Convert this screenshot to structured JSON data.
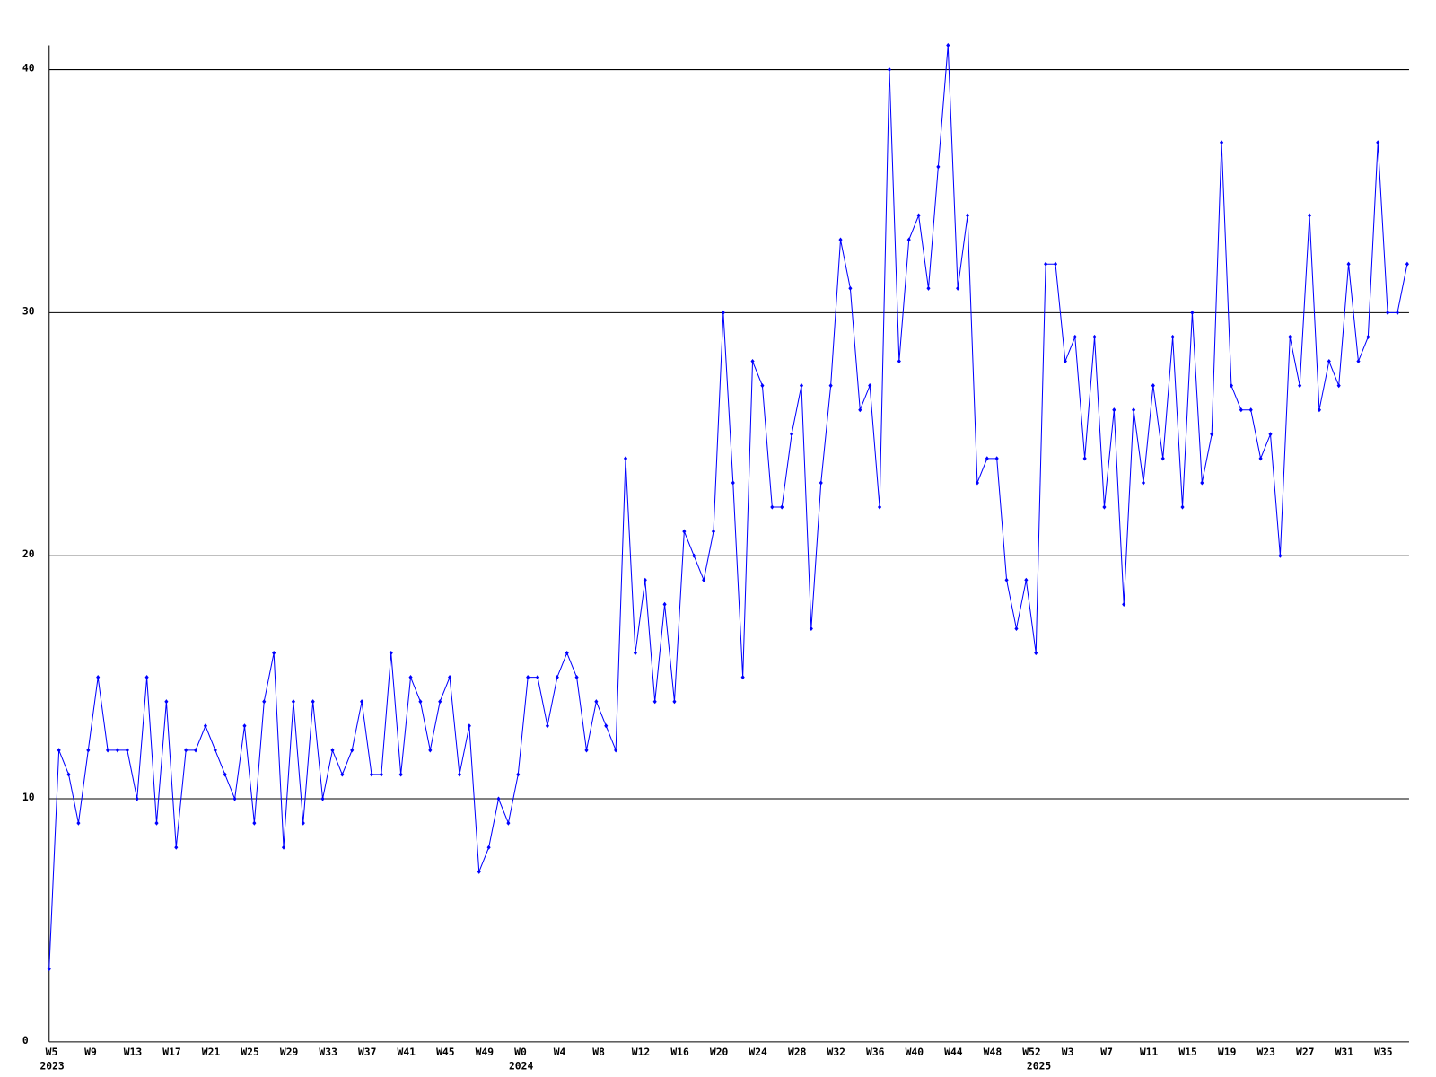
{
  "chart_data": {
    "type": "line",
    "color": "#0000ff",
    "grid": true,
    "ylim": [
      0,
      41
    ],
    "yticks": [
      0,
      10,
      20,
      30,
      40
    ],
    "categories": [
      "W5",
      null,
      null,
      null,
      "W9",
      null,
      null,
      null,
      "W13",
      null,
      null,
      null,
      "W17",
      null,
      null,
      null,
      "W21",
      null,
      null,
      null,
      "W25",
      null,
      null,
      null,
      "W29",
      null,
      null,
      null,
      "W33",
      null,
      null,
      null,
      "W37",
      null,
      null,
      null,
      "W41",
      null,
      null,
      null,
      "W45",
      null,
      null,
      null,
      "W49",
      null,
      null,
      null,
      "W0",
      null,
      null,
      null,
      "W4",
      null,
      null,
      null,
      "W8",
      null,
      null,
      null,
      "W12",
      null,
      null,
      null,
      "W16",
      null,
      null,
      null,
      "W20",
      null,
      null,
      null,
      "W24",
      null,
      null,
      null,
      "W28",
      null,
      null,
      null,
      "W32",
      null,
      null,
      null,
      "W36",
      null,
      null,
      null,
      "W40",
      null,
      null,
      null,
      "W44",
      null,
      null,
      null,
      "W48",
      null,
      null,
      null,
      "W52",
      null,
      null,
      null,
      "W3",
      null,
      null,
      null,
      "W7",
      null,
      null,
      null,
      "W11",
      null,
      null,
      null,
      "W15",
      null,
      null,
      null,
      "W19",
      null,
      null,
      null,
      "W23",
      null,
      null,
      null,
      "W27",
      null,
      null,
      null,
      "W31",
      null,
      null,
      null,
      "W35",
      null,
      null,
      null
    ],
    "x_sublabels": [
      "2023",
      null,
      null,
      null,
      null,
      null,
      null,
      null,
      null,
      null,
      null,
      null,
      null,
      null,
      null,
      null,
      null,
      null,
      null,
      null,
      null,
      null,
      null,
      null,
      null,
      null,
      null,
      null,
      null,
      null,
      null,
      null,
      null,
      null,
      null,
      null,
      null,
      null,
      null,
      null,
      null,
      null,
      null,
      null,
      null,
      null,
      null,
      null,
      "2024",
      null,
      null,
      null,
      null,
      null,
      null,
      null,
      null,
      null,
      null,
      null,
      null,
      null,
      null,
      null,
      null,
      null,
      null,
      null,
      null,
      null,
      null,
      null,
      null,
      null,
      null,
      null,
      null,
      null,
      null,
      null,
      null,
      null,
      null,
      null,
      null,
      null,
      null,
      null,
      null,
      null,
      null,
      null,
      null,
      null,
      null,
      null,
      null,
      null,
      null,
      null,
      null,
      "2025",
      null,
      null,
      null,
      null,
      null,
      null,
      null,
      null,
      null,
      null,
      null,
      null,
      null,
      null,
      null,
      null,
      null,
      null,
      null,
      null,
      null,
      null,
      null,
      null,
      null,
      null,
      null,
      null,
      null,
      null,
      null,
      null,
      null,
      null,
      null,
      null,
      null
    ],
    "values": [
      3,
      12,
      11,
      9,
      12,
      15,
      12,
      12,
      12,
      10,
      15,
      9,
      14,
      8,
      12,
      12,
      13,
      12,
      11,
      10,
      13,
      9,
      14,
      16,
      8,
      14,
      9,
      14,
      10,
      12,
      11,
      12,
      14,
      11,
      11,
      16,
      11,
      15,
      14,
      12,
      14,
      15,
      11,
      13,
      7,
      8,
      10,
      9,
      11,
      15,
      15,
      13,
      15,
      16,
      15,
      12,
      14,
      13,
      12,
      24,
      16,
      19,
      14,
      18,
      14,
      21,
      20,
      19,
      21,
      30,
      23,
      15,
      28,
      27,
      22,
      22,
      25,
      27,
      17,
      23,
      27,
      33,
      31,
      26,
      27,
      22,
      40,
      28,
      33,
      34,
      31,
      36,
      41,
      31,
      34,
      23,
      24,
      24,
      19,
      17,
      19,
      16,
      32,
      32,
      28,
      29,
      24,
      29,
      22,
      26,
      18,
      26,
      23,
      27,
      24,
      29,
      22,
      30,
      23,
      25,
      37,
      27,
      26,
      26,
      24,
      25,
      20,
      29,
      27,
      34,
      26,
      28,
      27,
      32,
      28,
      29,
      37,
      30,
      30,
      32
    ]
  }
}
